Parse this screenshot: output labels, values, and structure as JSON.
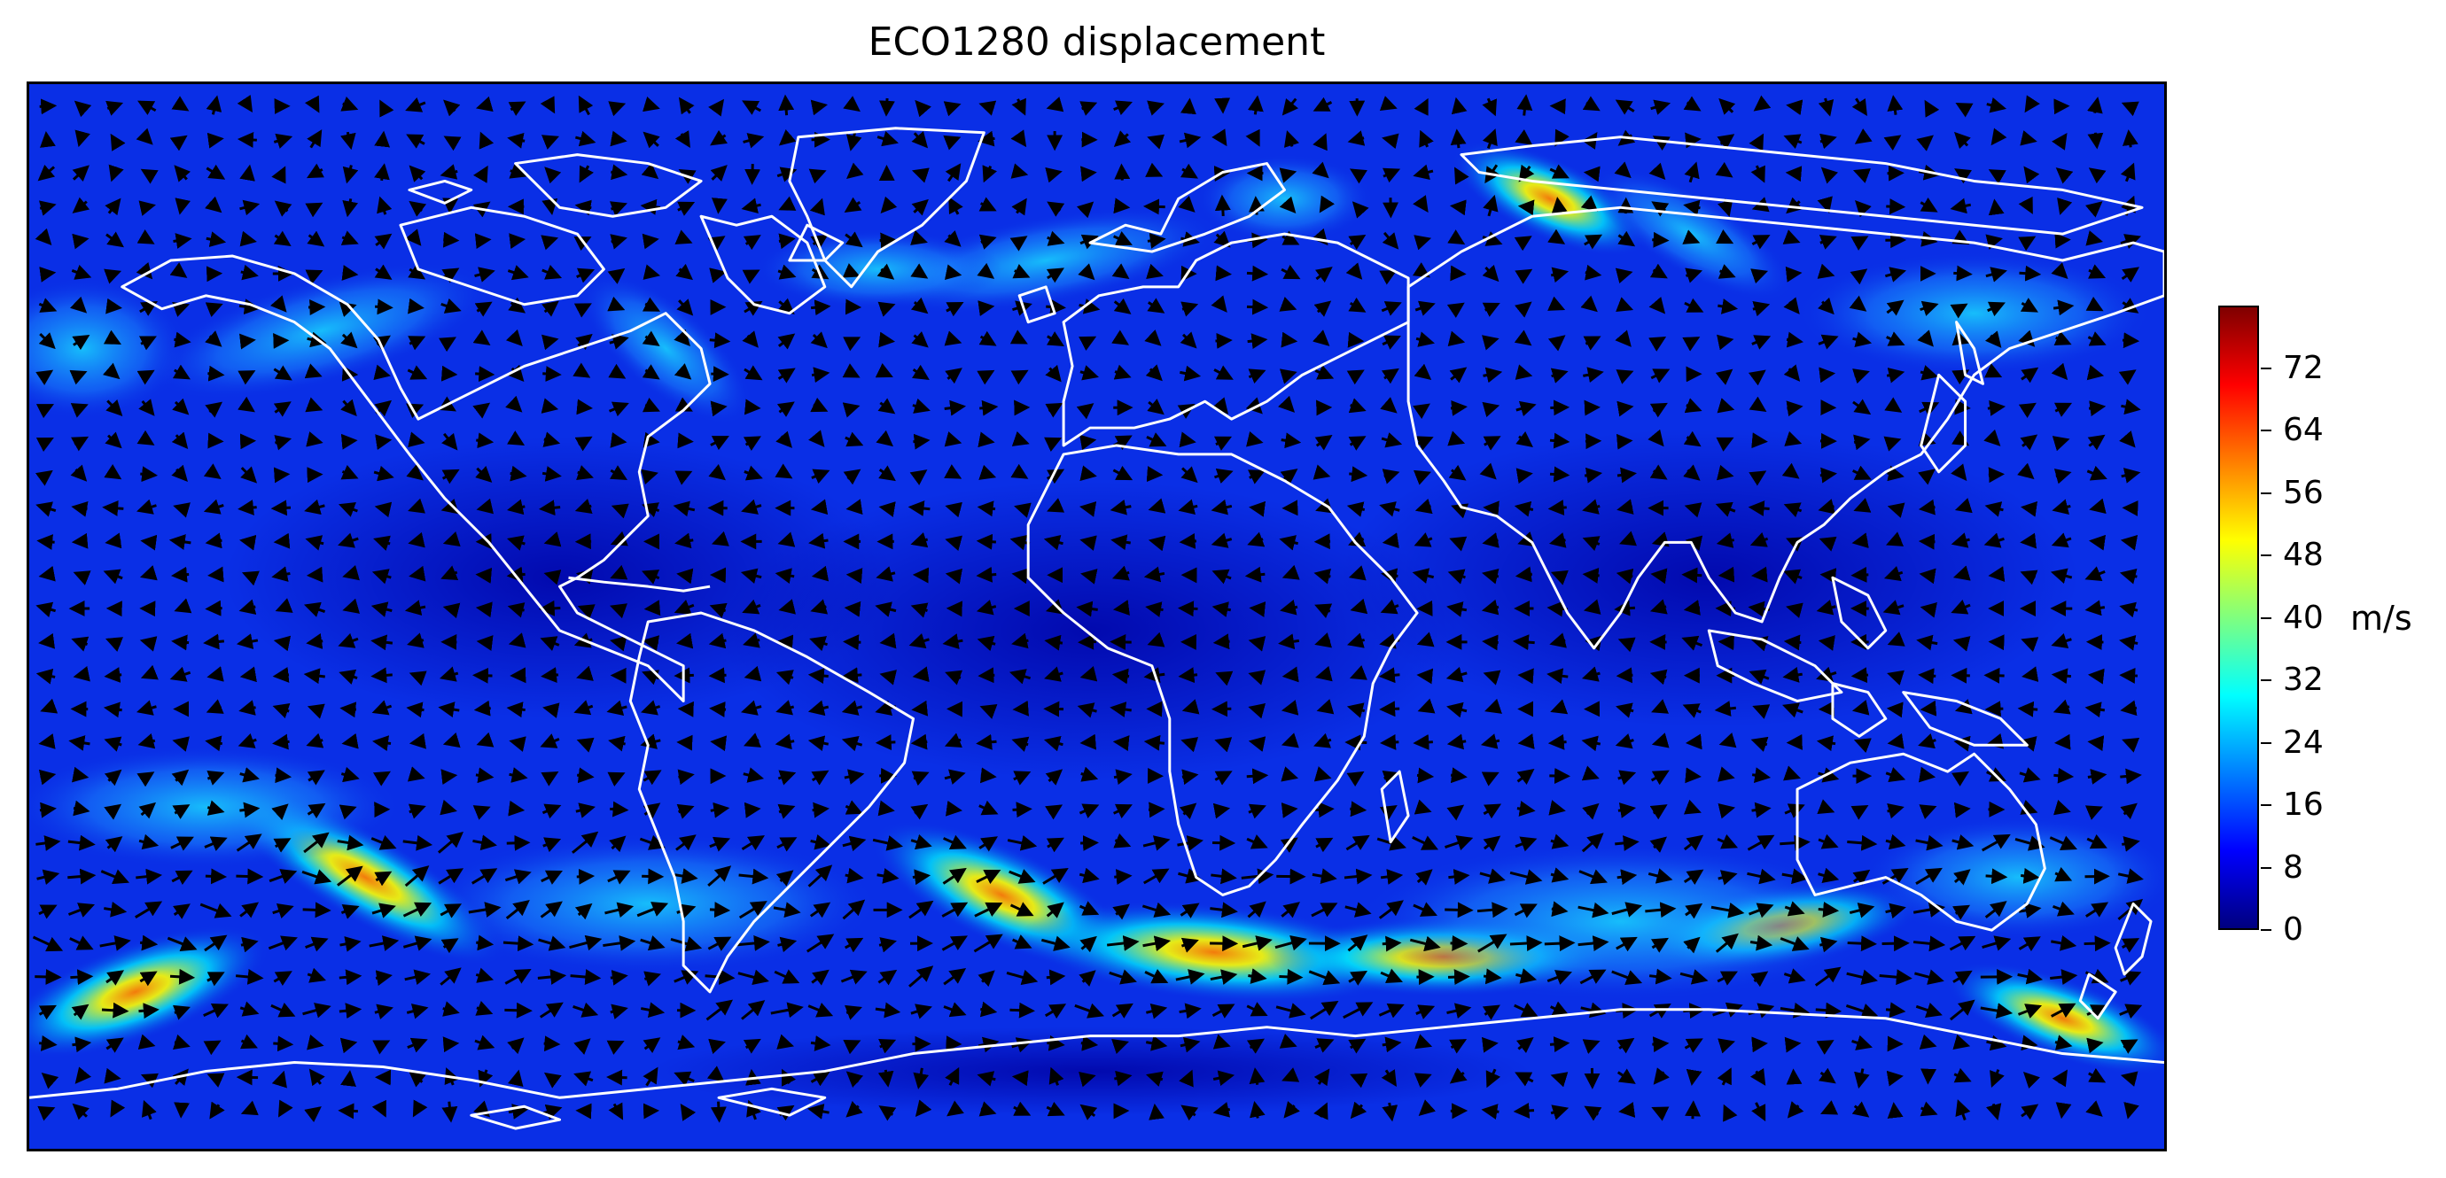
{
  "figure": {
    "title": "ECO1280 displacement",
    "colorbar": {
      "units": "m/s",
      "min": 0,
      "max": 80,
      "ticks": [
        "0",
        "8",
        "16",
        "24",
        "32",
        "40",
        "48",
        "56",
        "64",
        "72"
      ],
      "colormap": [
        "#00007f",
        "#0000ff",
        "#007fff",
        "#00ffff",
        "#7fff7f",
        "#ffff00",
        "#ff7f00",
        "#ff0000",
        "#7f0000"
      ]
    },
    "colors": {
      "ocean_base": "#0a2fe6",
      "coastline": "#ffffff",
      "arrow": "#000000"
    }
  }
}
